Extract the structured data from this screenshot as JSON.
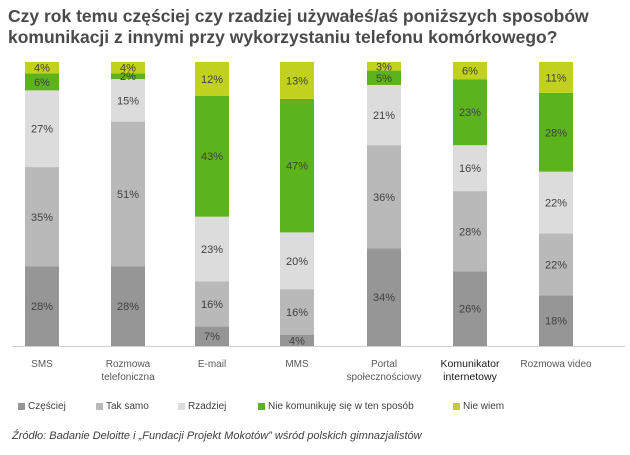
{
  "title": "Czy rok temu częściej czy rzadziej używałeś/aś poniższych sposobów komunikacji z innymi przy wykorzystaniu telefonu komórkowego?",
  "source": "Źródło: Badanie Deloitte i „Fundacji Projekt Mokotów” wśród polskich gimnazjalistów",
  "chart_data": {
    "type": "bar",
    "stacked": true,
    "orientation": "vertical",
    "title": "Czy rok temu częściej czy rzadziej używałeś/aś poniższych sposobów komunikacji z innymi przy wykorzystaniu telefonu komórkowego?",
    "ylim": [
      0,
      100
    ],
    "grid": false,
    "legend_position": "bottom",
    "categories": [
      [
        "SMS"
      ],
      [
        "Rozmowa",
        "telefoniczna"
      ],
      [
        "E-mail"
      ],
      [
        "MMS"
      ],
      [
        "Portal",
        "społecznościowy"
      ],
      [
        "Komunikator",
        "internetowy"
      ],
      [
        "Rozmowa video"
      ]
    ],
    "series": [
      {
        "name": "Częściej",
        "color": "#969696",
        "values": [
          28,
          28,
          7,
          4,
          34,
          26,
          18
        ]
      },
      {
        "name": "Tak samo",
        "color": "#b9b9b9",
        "values": [
          35,
          51,
          16,
          16,
          36,
          28,
          22
        ]
      },
      {
        "name": "Rzadziej",
        "color": "#dcdcdc",
        "values": [
          27,
          15,
          23,
          20,
          21,
          16,
          22
        ]
      },
      {
        "name": "Nie komunikuję się w ten sposób",
        "color": "#5db31b",
        "values": [
          6,
          2,
          43,
          47,
          5,
          23,
          28
        ]
      },
      {
        "name": "Nie wiem",
        "color": "#c2d11e",
        "values": [
          4,
          4,
          12,
          13,
          3,
          6,
          11
        ]
      }
    ],
    "value_suffix": "%"
  }
}
